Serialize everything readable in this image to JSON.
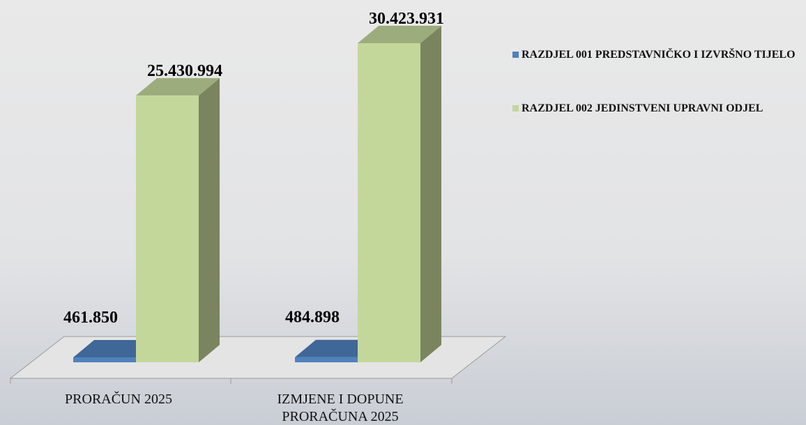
{
  "chart_data": {
    "type": "bar3d",
    "categories": [
      "PRORAČUN 2025",
      "IZMJENE I DOPUNE PRORAČUNA 2025"
    ],
    "series": [
      {
        "name": "RAZDJEL 001 PREDSTAVNIČKO I IZVRŠNO TIJELO",
        "color": "#4f81bd",
        "values": [
          461850,
          484898
        ],
        "value_labels": [
          "461.850",
          "484.898"
        ]
      },
      {
        "name": "RAZDJEL 002 JEDINSTVENI UPRAVNI ODJEL",
        "color": "#c4d79b",
        "values": [
          25430994,
          30423931
        ],
        "value_labels": [
          "25.430.994",
          "30.423.931"
        ]
      }
    ],
    "legend": "right"
  }
}
